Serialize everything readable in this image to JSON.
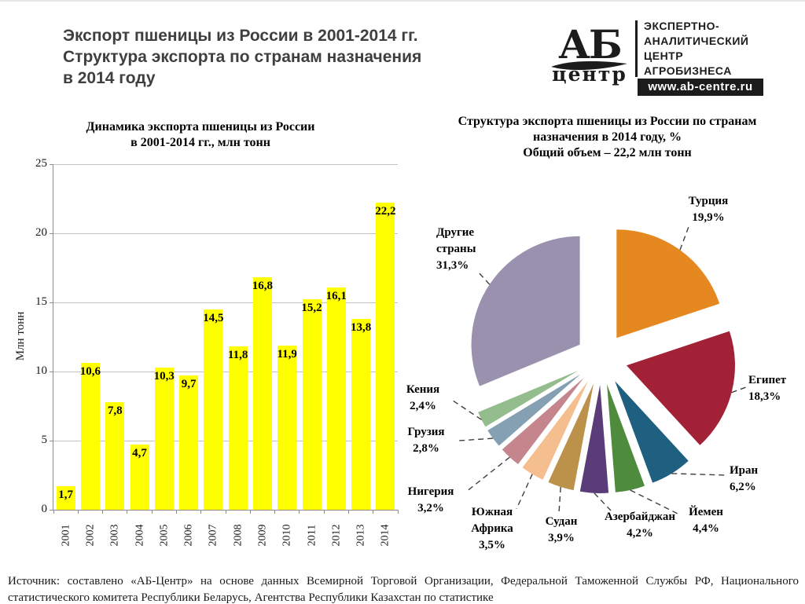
{
  "slide": {
    "title_lines": [
      "Экспорт пшеницы из России в 2001-2014 гг.",
      "Структура экспорта по странам назначения",
      "в 2014 году"
    ],
    "source_text": "Источник: составлено «АБ-Центр» на основе данных Всемирной Торговой Организации, Федеральной Таможенной Службы РФ, Национального статистического комитета Республики Беларусь, Агентства Республики Казахстан по статистике"
  },
  "logo": {
    "acronym": "АБ",
    "name": "центр",
    "tagline_lines": [
      "ЭКСПЕРТНО-",
      "АНАЛИТИЧЕСКИЙ",
      "ЦЕНТР",
      "АГРОБИЗНЕСА"
    ],
    "url": "www.ab-centre.ru"
  },
  "chart_data": [
    {
      "type": "bar",
      "title_lines": [
        "Динамика экспорта пшеницы из России",
        "в 2001-2014 гг., млн тонн"
      ],
      "ylabel": "Млн тонн",
      "ylim": [
        0,
        25
      ],
      "yticks": [
        "0",
        "5",
        "10",
        "15",
        "20",
        "25"
      ],
      "grid": true,
      "bar_color": "#FFFF00",
      "categories": [
        "2001",
        "2002",
        "2003",
        "2004",
        "2005",
        "2006",
        "2007",
        "2008",
        "2009",
        "2010",
        "2011",
        "2012",
        "2013",
        "2014"
      ],
      "values": [
        1.7,
        10.6,
        7.8,
        4.7,
        10.3,
        9.7,
        14.5,
        11.8,
        16.8,
        11.9,
        15.2,
        16.1,
        13.8,
        22.2
      ],
      "value_labels": [
        "1,7",
        "10,6",
        "7,8",
        "4,7",
        "10,3",
        "9,7",
        "14,5",
        "11,8",
        "16,8",
        "11,9",
        "15,2",
        "16,1",
        "13,8",
        "22,2"
      ]
    },
    {
      "type": "pie",
      "title_lines": [
        "Структура экспорта пшеницы из России по странам",
        "назначения в 2014 году, %",
        "Общий объем – 22,2 млн тонн"
      ],
      "total_label": "22,2 млн тонн",
      "slices": [
        {
          "key": "turkey",
          "name_lines": [
            "Турция"
          ],
          "pct_label": "19,9%",
          "value": 19.9,
          "color": "#E5881F"
        },
        {
          "key": "egypt",
          "name_lines": [
            "Египет"
          ],
          "pct_label": "18,3%",
          "value": 18.3,
          "color": "#A22137"
        },
        {
          "key": "iran",
          "name_lines": [
            "Иран"
          ],
          "pct_label": "6,2%",
          "value": 6.2,
          "color": "#1F5F80"
        },
        {
          "key": "yemen",
          "name_lines": [
            "Йемен"
          ],
          "pct_label": "4,4%",
          "value": 4.4,
          "color": "#4E8B3C"
        },
        {
          "key": "azerbaijan",
          "name_lines": [
            "Азербайджан"
          ],
          "pct_label": "4,2%",
          "value": 4.2,
          "color": "#5A3D78"
        },
        {
          "key": "sudan",
          "name_lines": [
            "Судан"
          ],
          "pct_label": "3,9%",
          "value": 3.9,
          "color": "#BC9149"
        },
        {
          "key": "south-africa",
          "name_lines": [
            "Южная",
            "Африка"
          ],
          "pct_label": "3,5%",
          "value": 3.5,
          "color": "#F5BE8E"
        },
        {
          "key": "nigeria",
          "name_lines": [
            "Нигерия"
          ],
          "pct_label": "3,2%",
          "value": 3.2,
          "color": "#C4858C"
        },
        {
          "key": "georgia",
          "name_lines": [
            "Грузия"
          ],
          "pct_label": "2,8%",
          "value": 2.8,
          "color": "#85A0B2"
        },
        {
          "key": "kenya",
          "name_lines": [
            "Кения"
          ],
          "pct_label": "2,4%",
          "value": 2.4,
          "color": "#93BD8C"
        },
        {
          "key": "other",
          "name_lines": [
            "Другие",
            "страны"
          ],
          "pct_label": "31,3%",
          "value": 31.3,
          "color": "#9991AD"
        }
      ],
      "legend": "none",
      "leader_line_color": "#3f3f3f"
    }
  ]
}
